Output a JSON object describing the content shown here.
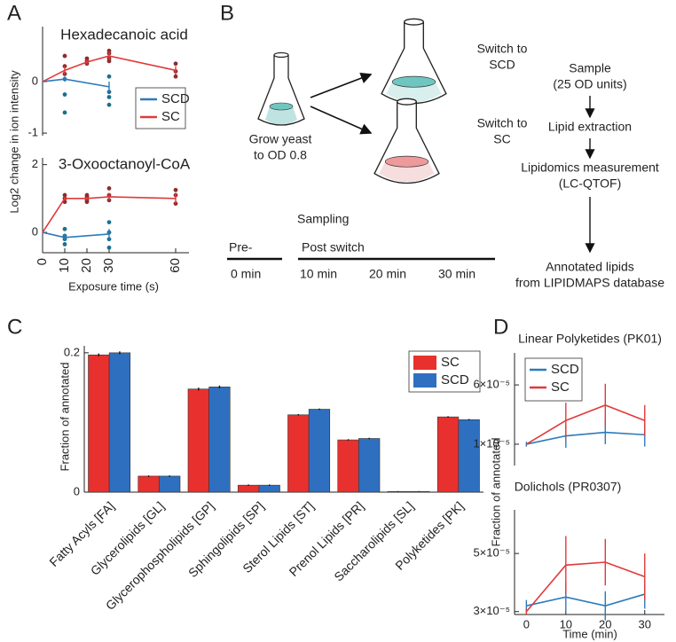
{
  "panel_labels": [
    "A",
    "B",
    "C",
    "D"
  ],
  "diagram": {
    "start": [
      "Grow yeast",
      "to OD 0.8"
    ],
    "branches": [
      [
        "Switch to",
        "SCD"
      ],
      [
        "Switch to",
        "SC"
      ]
    ],
    "steps": [
      [
        "Sample",
        "(25 OD units)"
      ],
      [
        "Lipid extraction"
      ],
      [
        "Lipidomics measurement",
        "(LC-QTOF)"
      ],
      [
        "Annotated lipids",
        "from LIPIDMAPS database"
      ]
    ],
    "sampling": {
      "title": "Sampling",
      "pre": "Pre-",
      "post": "Post switch",
      "times": [
        "0 min",
        "10 min",
        "20 min",
        "30 min"
      ]
    }
  },
  "chart_data": [
    {
      "type": "line",
      "title": "Hexadecanoic acid",
      "ylabel": "Log2 change in ion intensity",
      "xlim": [
        0,
        66
      ],
      "ylim": [
        -1.05,
        1.07
      ],
      "yticks": [
        -1,
        0
      ],
      "legend": "lower right",
      "series": [
        {
          "name": "SCD",
          "color": "#2b7bba",
          "x": [
            0,
            10,
            30
          ],
          "values": [
            0,
            0.05,
            -0.1
          ],
          "errors": [
            0,
            0.05,
            0.1
          ],
          "replicate_color": "#1d6f8f",
          "replicates": {
            "x": [
              10,
              10,
              10,
              30,
              30,
              30,
              30
            ],
            "values": [
              0.05,
              -0.25,
              -0.6,
              0.1,
              -0.2,
              -0.3,
              -0.45
            ]
          }
        },
        {
          "name": "SC",
          "color": "#e03a3a",
          "x": [
            0,
            10,
            20,
            30,
            60
          ],
          "values": [
            0,
            0.22,
            0.38,
            0.5,
            0.22
          ],
          "errors": [
            0,
            0.08,
            0.05,
            0.08,
            0.08
          ],
          "replicate_color": "#8c2d2d",
          "replicates": {
            "x": [
              10,
              10,
              10,
              20,
              20,
              20,
              30,
              30,
              30,
              30,
              60,
              60,
              60
            ],
            "values": [
              0.5,
              0.3,
              0.15,
              0.45,
              0.4,
              0.35,
              0.6,
              0.55,
              0.45,
              0.4,
              0.35,
              0.2,
              0.1
            ]
          }
        }
      ]
    },
    {
      "type": "line",
      "title": "3-Oxooctanoyl-CoA",
      "xlabel": "Exposure time (s)",
      "xlim": [
        0,
        66
      ],
      "ylim": [
        -0.6,
        2.2
      ],
      "xticks": [
        0,
        10,
        20,
        30,
        60
      ],
      "yticks": [
        0,
        2
      ],
      "series": [
        {
          "color": "#2b7bba",
          "x": [
            0,
            10,
            30
          ],
          "values": [
            0,
            -0.15,
            -0.05
          ],
          "errors": [
            0,
            0.1,
            0.15
          ],
          "replicate_color": "#1d6f8f",
          "replicates": {
            "x": [
              10,
              10,
              10,
              10,
              30,
              30,
              30,
              30
            ],
            "values": [
              0.1,
              -0.1,
              -0.2,
              -0.35,
              0.3,
              0,
              -0.2,
              -0.45
            ]
          }
        },
        {
          "color": "#e03a3a",
          "x": [
            0,
            10,
            20,
            30,
            60
          ],
          "values": [
            0,
            1,
            1,
            1.05,
            1
          ],
          "errors": [
            0,
            0.05,
            0.05,
            0.1,
            0.15
          ],
          "replicate_color": "#8c2d2d",
          "replicates": {
            "x": [
              10,
              10,
              10,
              20,
              20,
              20,
              20,
              30,
              30,
              30,
              60,
              60,
              60
            ],
            "values": [
              1.1,
              1,
              0.9,
              1.1,
              1.05,
              0.95,
              0.9,
              1.3,
              1.1,
              0.95,
              1.25,
              1.1,
              0.85
            ]
          }
        }
      ]
    },
    {
      "type": "bar",
      "ylabel": "Fraction of annotated",
      "ylim": [
        0,
        0.21
      ],
      "yticks": [
        0,
        0.2
      ],
      "legend": "upper right",
      "categories": [
        "Fatty Acyls [FA]",
        "Glycerolipids [GL]",
        "Glycerophospholipids [GP]",
        "Sphingolipids [SP]",
        "Sterol Lipids  [ST]",
        "Prenol Lipids  [PR]",
        "Saccharolipids [SL]",
        "Polyketides [PK]"
      ],
      "series": [
        {
          "name": "SC",
          "color": "#e8302e",
          "values": [
            0.197,
            0.023,
            0.148,
            0.01,
            0.111,
            0.075,
            0.001,
            0.108
          ],
          "errors": [
            0.002,
            0.001,
            0.002,
            0.001,
            0.001,
            0.001,
            0.0005,
            0.001
          ]
        },
        {
          "name": "SCD",
          "color": "#2f6fc0",
          "values": [
            0.2,
            0.023,
            0.151,
            0.01,
            0.119,
            0.077,
            0.001,
            0.104
          ],
          "errors": [
            0.002,
            0.001,
            0.002,
            0.001,
            0.001,
            0.001,
            0.0005,
            0.001
          ]
        }
      ]
    },
    {
      "type": "line",
      "title": "Linear Polyketides (PK01)",
      "ylabel": "Fraction of annotated",
      "xlim": [
        -3,
        35
      ],
      "ylim": [
        -8e-06,
        8.7e-05
      ],
      "legend": "upper left",
      "yticks": [
        {
          "value": 6e-05,
          "label": "6×10⁻⁵"
        },
        {
          "value": 1e-05,
          "label": "1×10⁻⁵"
        }
      ],
      "series": [
        {
          "name": "SCD",
          "color": "#2b7bba",
          "x": [
            0,
            10,
            20,
            30
          ],
          "values": [
            1e-05,
            1.7e-05,
            2e-05,
            1.8e-05
          ],
          "errors": [
            2e-06,
            1e-05,
            1e-05,
            1e-05
          ]
        },
        {
          "name": "SC",
          "color": "#e03a3a",
          "x": [
            0,
            10,
            20,
            30
          ],
          "values": [
            1e-05,
            3e-05,
            4.3e-05,
            3e-05
          ],
          "errors": [
            0,
            1.5e-05,
            1.8e-05,
            1.3e-05
          ]
        }
      ]
    },
    {
      "type": "line",
      "title": "Dolichols (PR0307)",
      "xlabel": "Time (min)",
      "xlim": [
        -3,
        35
      ],
      "ylim": [
        2.9e-05,
        6.5e-05
      ],
      "xticks": [
        0,
        10,
        20,
        30
      ],
      "yticks": [
        {
          "value": 5e-05,
          "label": "5×10⁻⁵"
        },
        {
          "value": 3e-05,
          "label": "3×10⁻⁵"
        }
      ],
      "series": [
        {
          "color": "#2b7bba",
          "x": [
            0,
            10,
            20,
            30
          ],
          "values": [
            3.2e-05,
            3.5e-05,
            3.2e-05,
            3.6e-05
          ],
          "errors": [
            2e-06,
            5e-06,
            5e-06,
            5e-06
          ]
        },
        {
          "color": "#e03a3a",
          "x": [
            0,
            10,
            20,
            30
          ],
          "values": [
            3e-05,
            4.6e-05,
            4.7e-05,
            4.2e-05
          ],
          "errors": [
            1e-06,
            1e-05,
            8e-06,
            8e-06
          ]
        }
      ]
    }
  ]
}
